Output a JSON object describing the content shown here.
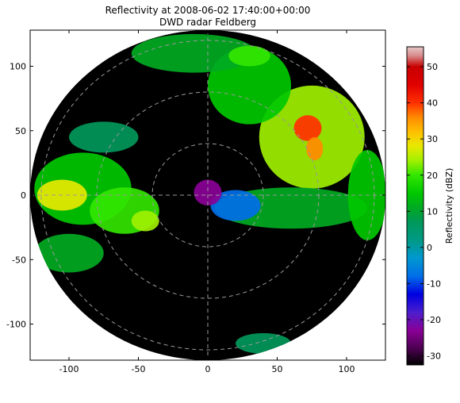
{
  "chart_data": {
    "type": "heatmap",
    "title": "Reflectivity at 2008-06-02 17:40:00+00:00",
    "subtitle": "DWD radar Feldberg",
    "xlabel": "",
    "ylabel": "",
    "xlim": [
      -128,
      128
    ],
    "ylim": [
      -128,
      128
    ],
    "x_ticks": [
      -100,
      -50,
      0,
      50,
      100
    ],
    "y_ticks": [
      -100,
      -50,
      0,
      50,
      100
    ],
    "max_range": 128,
    "range_rings": [
      40,
      80,
      120
    ],
    "grid": true,
    "background_inside_range": "#000000",
    "colorbar": {
      "label": "Reflectivity (dBZ)",
      "min": -32.5,
      "max": 55.5,
      "ticks": [
        -30,
        -20,
        -10,
        0,
        10,
        20,
        30,
        40,
        50
      ],
      "stops": [
        {
          "v": -32.5,
          "c": "#000000"
        },
        {
          "v": -28,
          "c": "#4b0050"
        },
        {
          "v": -23,
          "c": "#8a0096"
        },
        {
          "v": -18,
          "c": "#4c1ecc"
        },
        {
          "v": -13,
          "c": "#0000e0"
        },
        {
          "v": -8,
          "c": "#006ee8"
        },
        {
          "v": -3,
          "c": "#0098d0"
        },
        {
          "v": 2,
          "c": "#009a86"
        },
        {
          "v": 7,
          "c": "#00985a"
        },
        {
          "v": 11,
          "c": "#00aa22"
        },
        {
          "v": 15,
          "c": "#00c800"
        },
        {
          "v": 20,
          "c": "#33e600"
        },
        {
          "v": 24,
          "c": "#a0f000"
        },
        {
          "v": 28,
          "c": "#e8e800"
        },
        {
          "v": 32,
          "c": "#ffc000"
        },
        {
          "v": 36,
          "c": "#ff8a00"
        },
        {
          "v": 40,
          "c": "#ff3000"
        },
        {
          "v": 45,
          "c": "#e00000"
        },
        {
          "v": 50,
          "c": "#c80000"
        },
        {
          "v": 53,
          "c": "#d88a8a"
        },
        {
          "v": 55.5,
          "c": "#e6c8c8"
        }
      ]
    },
    "echo_regions": [
      {
        "name": "north-northeast-band",
        "cx": 30,
        "cy": 85,
        "rx": 30,
        "ry": 30,
        "dbz": 17
      },
      {
        "name": "northeast-cell",
        "cx": 75,
        "cy": 45,
        "rx": 38,
        "ry": 40,
        "dbz": 24
      },
      {
        "name": "northeast-core",
        "cx": 72,
        "cy": 52,
        "rx": 10,
        "ry": 10,
        "dbz": 40
      },
      {
        "name": "northeast-core-2",
        "cx": 77,
        "cy": 36,
        "rx": 6,
        "ry": 9,
        "dbz": 38
      },
      {
        "name": "north-cell",
        "cx": -10,
        "cy": 110,
        "rx": 45,
        "ry": 15,
        "dbz": 14
      },
      {
        "name": "north-cell-core",
        "cx": 30,
        "cy": 108,
        "rx": 15,
        "ry": 8,
        "dbz": 22
      },
      {
        "name": "west-band",
        "cx": -90,
        "cy": 5,
        "rx": 35,
        "ry": 28,
        "dbz": 18
      },
      {
        "name": "west-core",
        "cx": -105,
        "cy": 0,
        "rx": 18,
        "ry": 12,
        "dbz": 28
      },
      {
        "name": "west-mid",
        "cx": -60,
        "cy": -12,
        "rx": 25,
        "ry": 18,
        "dbz": 20
      },
      {
        "name": "west-mid-core",
        "cx": -45,
        "cy": -20,
        "rx": 10,
        "ry": 8,
        "dbz": 27
      },
      {
        "name": "southwest-patch",
        "cx": -100,
        "cy": -45,
        "rx": 25,
        "ry": 15,
        "dbz": 12
      },
      {
        "name": "east-band",
        "cx": 60,
        "cy": -10,
        "rx": 55,
        "ry": 16,
        "dbz": 12
      },
      {
        "name": "east-edge",
        "cx": 115,
        "cy": 0,
        "rx": 14,
        "ry": 35,
        "dbz": 16
      },
      {
        "name": "northwest-patch",
        "cx": -75,
        "cy": 45,
        "rx": 25,
        "ry": 12,
        "dbz": 10
      },
      {
        "name": "center-clutter",
        "cx": 0,
        "cy": 2,
        "rx": 10,
        "ry": 10,
        "dbz": -22
      },
      {
        "name": "east-clutter",
        "cx": 20,
        "cy": -8,
        "rx": 18,
        "ry": 12,
        "dbz": -8
      },
      {
        "name": "south-speckle",
        "cx": 40,
        "cy": -115,
        "rx": 20,
        "ry": 8,
        "dbz": 8
      }
    ]
  }
}
